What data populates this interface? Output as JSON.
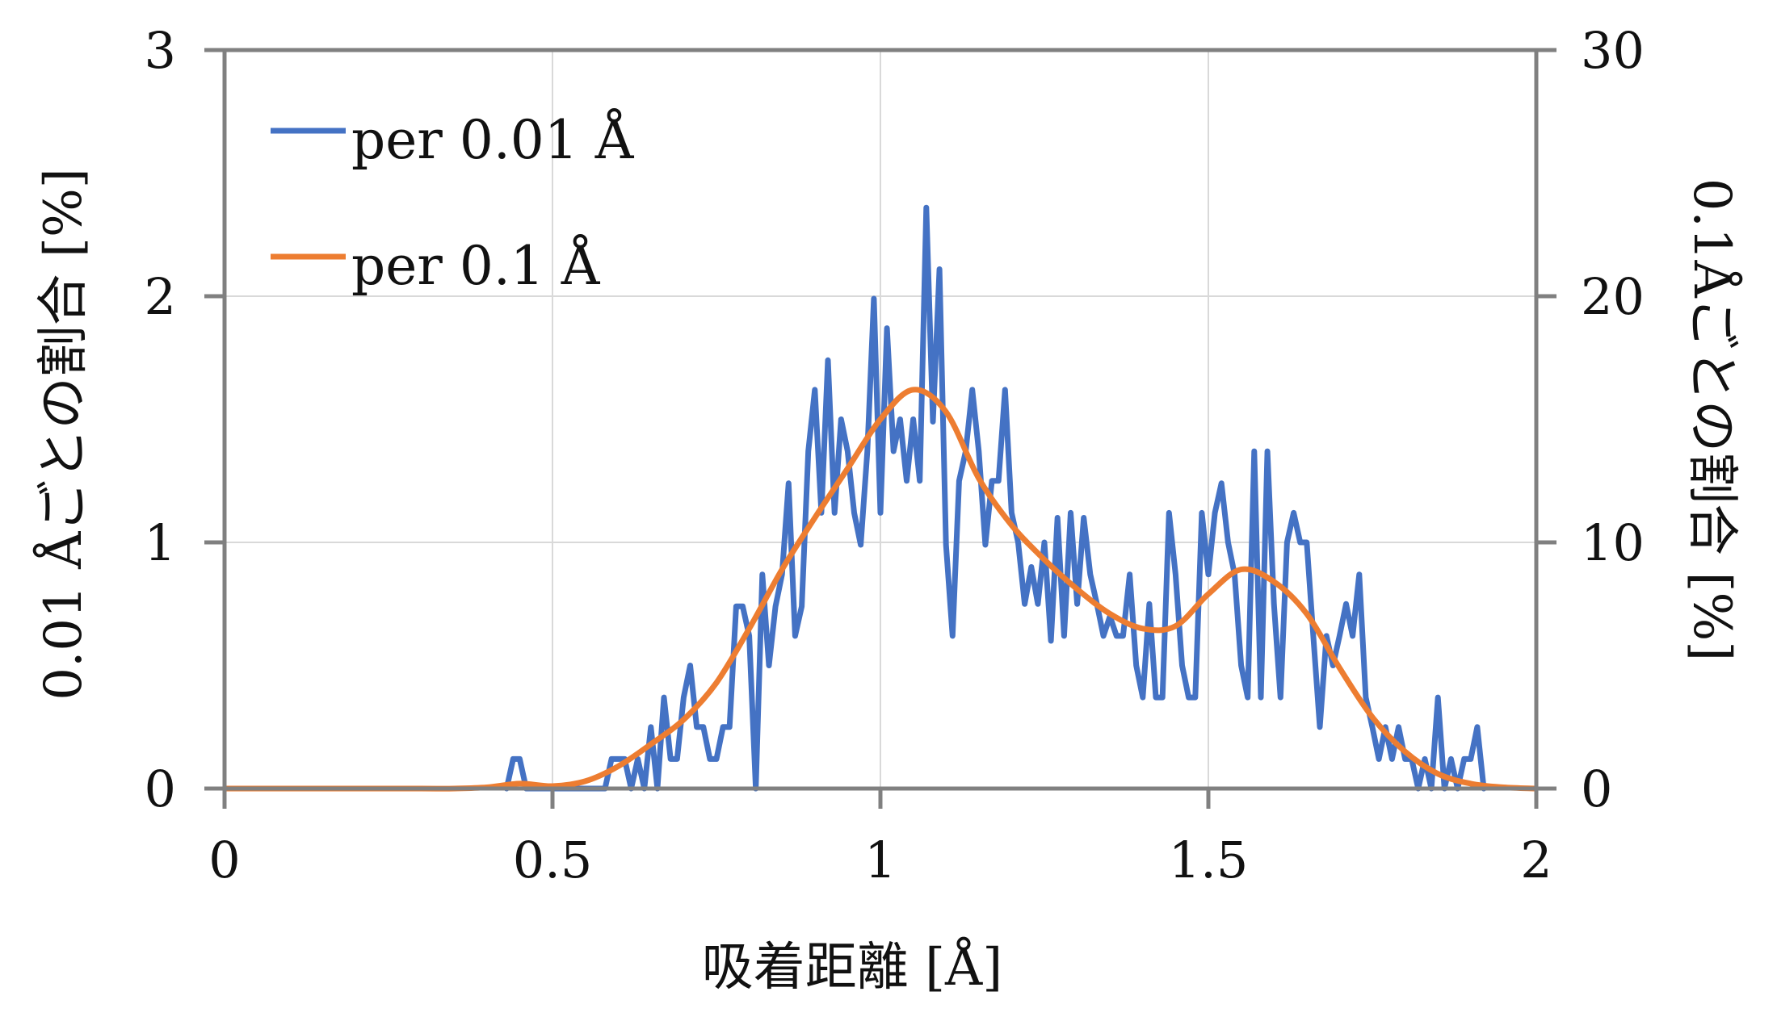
{
  "chart_data": {
    "type": "line",
    "title": "",
    "xlabel": "吸着距離 [Å]",
    "ylabel_left": "0.01 Åごとの割合 [%]",
    "ylabel_right": "0.1Åごとの割合 [%]",
    "xlim": [
      0,
      2
    ],
    "ylim_left": [
      0,
      3
    ],
    "ylim_right": [
      0,
      30
    ],
    "xticks": [
      0,
      0.5,
      1,
      1.5,
      2
    ],
    "xtick_labels": [
      "0",
      "0.5",
      "1",
      "1.5",
      "2"
    ],
    "yticks_left": [
      0,
      1,
      2,
      3
    ],
    "ytick_labels_left": [
      "0",
      "1",
      "2",
      "3"
    ],
    "yticks_right": [
      0,
      10,
      20,
      30
    ],
    "ytick_labels_right": [
      "0",
      "10",
      "20",
      "30"
    ],
    "grid": true,
    "legend_position": "top-left",
    "series": [
      {
        "name": "per 0.01 Å",
        "axis": "left",
        "color": "#4472C4",
        "x": [
          0.43,
          0.44,
          0.45,
          0.46,
          0.47,
          0.48,
          0.49,
          0.5,
          0.51,
          0.52,
          0.53,
          0.54,
          0.55,
          0.56,
          0.57,
          0.58,
          0.59,
          0.6,
          0.61,
          0.62,
          0.63,
          0.64,
          0.65,
          0.66,
          0.67,
          0.68,
          0.69,
          0.7,
          0.71,
          0.72,
          0.73,
          0.74,
          0.75,
          0.76,
          0.77,
          0.78,
          0.79,
          0.8,
          0.81,
          0.82,
          0.83,
          0.84,
          0.85,
          0.86,
          0.87,
          0.88,
          0.89,
          0.9,
          0.91,
          0.92,
          0.93,
          0.94,
          0.95,
          0.96,
          0.97,
          0.98,
          0.99,
          1.0,
          1.01,
          1.02,
          1.03,
          1.04,
          1.05,
          1.06,
          1.07,
          1.08,
          1.09,
          1.1,
          1.11,
          1.12,
          1.13,
          1.14,
          1.15,
          1.16,
          1.17,
          1.18,
          1.19,
          1.2,
          1.21,
          1.22,
          1.23,
          1.24,
          1.25,
          1.26,
          1.27,
          1.28,
          1.29,
          1.3,
          1.31,
          1.32,
          1.33,
          1.34,
          1.35,
          1.36,
          1.37,
          1.38,
          1.39,
          1.4,
          1.41,
          1.42,
          1.43,
          1.44,
          1.45,
          1.46,
          1.47,
          1.48,
          1.49,
          1.5,
          1.51,
          1.52,
          1.53,
          1.54,
          1.55,
          1.56,
          1.57,
          1.58,
          1.59,
          1.6,
          1.61,
          1.62,
          1.63,
          1.64,
          1.65,
          1.66,
          1.67,
          1.68,
          1.69,
          1.7,
          1.71,
          1.72,
          1.73,
          1.74,
          1.75,
          1.76,
          1.77,
          1.78,
          1.79,
          1.8,
          1.81,
          1.82,
          1.83,
          1.84,
          1.85,
          1.86,
          1.87,
          1.88,
          1.89,
          1.9,
          1.91,
          1.92
        ],
        "y": [
          0,
          0.12,
          0.12,
          0,
          0,
          0,
          0,
          0,
          0,
          0,
          0,
          0,
          0,
          0,
          0,
          0,
          0.12,
          0.12,
          0.12,
          0,
          0.12,
          0,
          0.25,
          0,
          0.37,
          0.12,
          0.12,
          0.37,
          0.5,
          0.25,
          0.25,
          0.12,
          0.12,
          0.25,
          0.25,
          0.74,
          0.74,
          0.62,
          0,
          0.87,
          0.5,
          0.74,
          0.87,
          1.24,
          0.62,
          0.74,
          1.37,
          1.62,
          1.12,
          1.74,
          1.12,
          1.5,
          1.37,
          1.12,
          0.99,
          1.37,
          1.99,
          1.12,
          1.87,
          1.37,
          1.5,
          1.25,
          1.5,
          1.25,
          2.36,
          1.49,
          2.11,
          0.99,
          0.62,
          1.25,
          1.37,
          1.62,
          1.37,
          0.99,
          1.25,
          1.25,
          1.62,
          1.12,
          1.0,
          0.75,
          0.9,
          0.75,
          1.0,
          0.6,
          1.1,
          0.62,
          1.12,
          0.75,
          1.1,
          0.87,
          0.75,
          0.62,
          0.7,
          0.62,
          0.62,
          0.87,
          0.5,
          0.37,
          0.75,
          0.37,
          0.37,
          1.12,
          0.87,
          0.5,
          0.37,
          0.37,
          1.12,
          0.87,
          1.12,
          1.24,
          1.0,
          0.87,
          0.5,
          0.37,
          1.37,
          0.37,
          1.37,
          0.75,
          0.37,
          1.0,
          1.12,
          1.0,
          1.0,
          0.62,
          0.25,
          0.62,
          0.5,
          0.62,
          0.75,
          0.62,
          0.87,
          0.37,
          0.25,
          0.12,
          0.25,
          0.12,
          0.25,
          0.12,
          0.12,
          0,
          0.12,
          0,
          0.37,
          0,
          0.12,
          0,
          0.12,
          0.12,
          0.25,
          0
        ]
      },
      {
        "name": "per 0.1 Å",
        "axis": "right",
        "color": "#ED7D31",
        "x": [
          0,
          0.1,
          0.2,
          0.3,
          0.35,
          0.4,
          0.45,
          0.5,
          0.55,
          0.6,
          0.65,
          0.7,
          0.75,
          0.8,
          0.85,
          0.9,
          0.95,
          1.0,
          1.05,
          1.1,
          1.15,
          1.2,
          1.25,
          1.3,
          1.35,
          1.4,
          1.45,
          1.5,
          1.55,
          1.6,
          1.65,
          1.7,
          1.75,
          1.8,
          1.85,
          1.9,
          1.95,
          2.0
        ],
        "y": [
          0,
          0,
          0,
          0,
          0,
          0.05,
          0.2,
          0.1,
          0.3,
          0.9,
          1.8,
          2.8,
          4.3,
          6.5,
          8.9,
          11.0,
          13.0,
          15.0,
          16.2,
          15.3,
          12.6,
          10.7,
          9.3,
          8.1,
          7.1,
          6.5,
          6.6,
          7.9,
          8.9,
          8.4,
          7.1,
          4.9,
          2.9,
          1.5,
          0.6,
          0.2,
          0.05,
          0
        ]
      }
    ]
  }
}
